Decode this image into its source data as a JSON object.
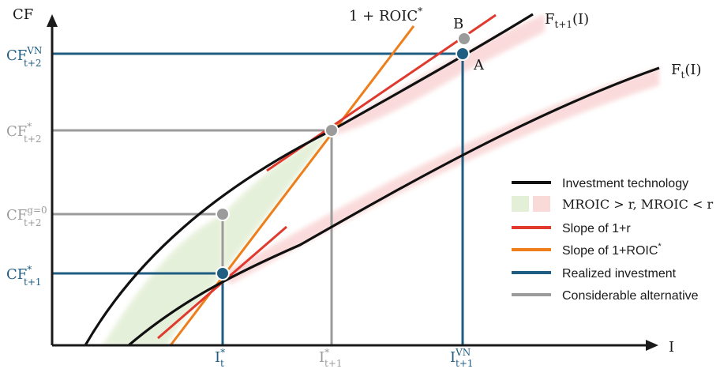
{
  "colors": {
    "axis": "#1a1a1a",
    "technology": "#111111",
    "slope_r": "#e03a2f",
    "slope_roic": "#ee7d1a",
    "realized": "#1f5d82",
    "alternative": "#9b9b9b",
    "green_area": "#e3efd6",
    "red_area": "#fad9d9"
  },
  "axes": {
    "y_label": "CF",
    "x_label": "I",
    "y_ticks": {
      "cf_vn": {
        "base": "CF",
        "sup": "VN",
        "sub": "t+2"
      },
      "cf_star_t2": {
        "base": "CF",
        "sup": "*",
        "sub": "t+2"
      },
      "cf_g0": {
        "base": "CF",
        "sup": "g=0",
        "sub": "t+2"
      },
      "cf_star_t1": {
        "base": "CF",
        "sup": "*",
        "sub": "t+1"
      }
    },
    "x_ticks": {
      "i_t": {
        "base": "I",
        "sup": "*",
        "sub": "t"
      },
      "i_t1": {
        "base": "I",
        "sup": "*",
        "sub": "t+1"
      },
      "i_vn": {
        "base": "I",
        "sup": "VN",
        "sub": "t+1"
      }
    }
  },
  "curve_labels": {
    "ft1": {
      "base": "F",
      "sub": "t+1",
      "arg": "(I)"
    },
    "ft": {
      "base": "F",
      "sub": "t",
      "arg": "(I)"
    },
    "roic": {
      "text": "1 + ROIC",
      "sup": "*"
    }
  },
  "point_labels": {
    "a": "A",
    "b": "B"
  },
  "legend": {
    "items": [
      {
        "label": "Investment technology"
      },
      {
        "label": "MROIC > r, MROIC < r"
      },
      {
        "label": "Slope of 1+r"
      },
      {
        "label": "Slope of 1+ROIC",
        "sup": "*"
      },
      {
        "label": "Realized investment"
      },
      {
        "label": "Considerable alternative"
      }
    ]
  }
}
